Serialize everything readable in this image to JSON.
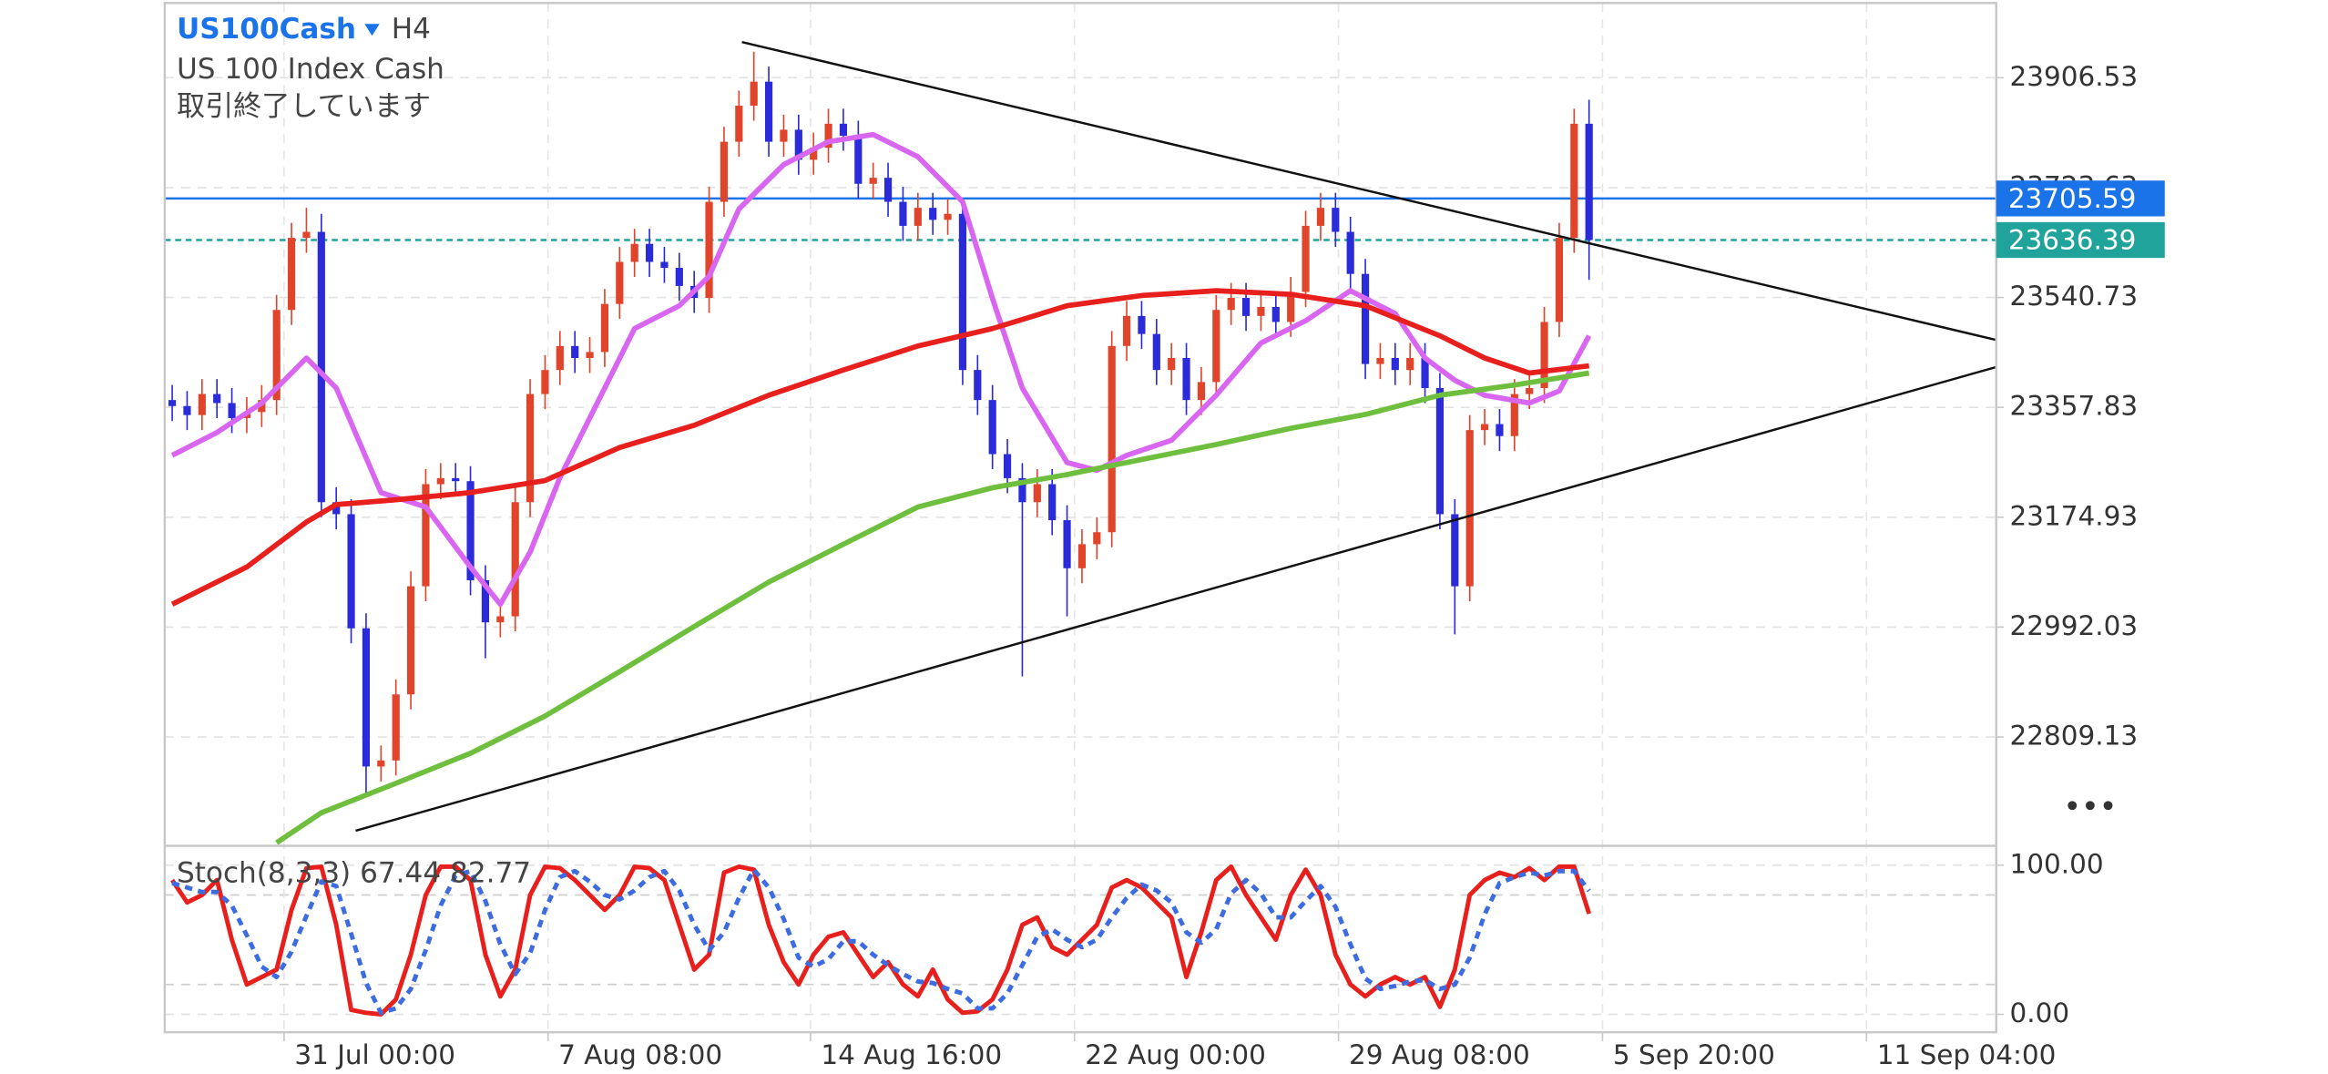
{
  "chart_data": [
    {
      "type": "candlestick",
      "title": "US100Cash",
      "timeframe": "H4",
      "subtitle": "US 100 Index Cash",
      "status": "取引終了しています",
      "xlim": [
        -0.5,
        122.3
      ],
      "ylim": [
        22628,
        24031
      ],
      "yticks": [
        23906.53,
        23723.63,
        23540.73,
        23357.83,
        23174.93,
        22992.03,
        22809.13
      ],
      "grid": true,
      "up_color": "#e0442b",
      "down_color": "#2b2bd9",
      "open": [
        23370,
        23360,
        23345,
        23380,
        23365,
        23340,
        23350,
        23370,
        23520,
        23640,
        23650,
        23200,
        23180,
        22990,
        22760,
        22770,
        22880,
        23060,
        23230,
        23240,
        23235,
        23070,
        23000,
        23010,
        23200,
        23380,
        23420,
        23460,
        23440,
        23450,
        23530,
        23600,
        23630,
        23600,
        23590,
        23560,
        23540,
        23700,
        23800,
        23860,
        23900,
        23800,
        23820,
        23770,
        23790,
        23830,
        23810,
        23730,
        23740,
        23700,
        23660,
        23690,
        23670,
        23680,
        23420,
        23370,
        23280,
        23240,
        23200,
        23230,
        23170,
        23090,
        23130,
        23150,
        23460,
        23510,
        23480,
        23420,
        23440,
        23370,
        23400,
        23520,
        23540,
        23510,
        23525,
        23500,
        23550,
        23660,
        23690,
        23650,
        23580,
        23430,
        23440,
        23420,
        23440,
        23390,
        23180,
        23060,
        23320,
        23330,
        23310,
        23380,
        23390,
        23500,
        23640,
        23830
      ],
      "high": [
        23395,
        23385,
        23405,
        23405,
        23390,
        23375,
        23395,
        23545,
        23665,
        23690,
        23680,
        23225,
        23205,
        23015,
        22795,
        22905,
        23085,
        23255,
        23265,
        23265,
        23260,
        23095,
        23035,
        23225,
        23405,
        23445,
        23485,
        23485,
        23475,
        23555,
        23625,
        23655,
        23655,
        23625,
        23615,
        23585,
        23725,
        23825,
        23885,
        23950,
        23925,
        23845,
        23845,
        23815,
        23855,
        23855,
        23835,
        23765,
        23765,
        23725,
        23715,
        23715,
        23705,
        23705,
        23445,
        23395,
        23305,
        23265,
        23255,
        23255,
        23195,
        23155,
        23175,
        23485,
        23535,
        23535,
        23505,
        23465,
        23465,
        23425,
        23545,
        23565,
        23565,
        23550,
        23550,
        23575,
        23685,
        23715,
        23715,
        23675,
        23605,
        23465,
        23465,
        23465,
        23465,
        23415,
        23205,
        23345,
        23355,
        23355,
        23405,
        23415,
        23525,
        23665,
        23855,
        23870
      ],
      "low": [
        23335,
        23320,
        23320,
        23340,
        23315,
        23315,
        23325,
        23345,
        23495,
        23615,
        23175,
        23155,
        22965,
        22710,
        22735,
        22745,
        22855,
        23035,
        23205,
        23210,
        23045,
        22940,
        22975,
        22985,
        23175,
        23355,
        23395,
        23415,
        23415,
        23425,
        23505,
        23575,
        23575,
        23565,
        23535,
        23515,
        23515,
        23675,
        23775,
        23835,
        23775,
        23775,
        23745,
        23745,
        23765,
        23785,
        23705,
        23705,
        23675,
        23635,
        23635,
        23645,
        23645,
        23395,
        23345,
        23255,
        23215,
        22910,
        23175,
        23145,
        23010,
        23065,
        23105,
        23125,
        23435,
        23455,
        23395,
        23395,
        23345,
        23345,
        23375,
        23495,
        23485,
        23485,
        23475,
        23475,
        23525,
        23635,
        23625,
        23555,
        23405,
        23405,
        23395,
        23395,
        23365,
        23155,
        22980,
        23035,
        23295,
        23285,
        23285,
        23355,
        23365,
        23475,
        23615,
        23570
      ],
      "close": [
        23360,
        23345,
        23380,
        23365,
        23340,
        23350,
        23370,
        23520,
        23640,
        23650,
        23200,
        23180,
        22990,
        22760,
        22770,
        22880,
        23060,
        23230,
        23240,
        23235,
        23070,
        23000,
        23010,
        23200,
        23380,
        23420,
        23460,
        23440,
        23450,
        23530,
        23600,
        23630,
        23600,
        23590,
        23560,
        23540,
        23700,
        23800,
        23860,
        23900,
        23800,
        23820,
        23770,
        23790,
        23830,
        23810,
        23730,
        23740,
        23700,
        23660,
        23690,
        23670,
        23680,
        23420,
        23370,
        23280,
        23240,
        23200,
        23230,
        23170,
        23090,
        23130,
        23150,
        23460,
        23510,
        23480,
        23420,
        23440,
        23370,
        23400,
        23520,
        23540,
        23510,
        23525,
        23500,
        23550,
        23660,
        23690,
        23650,
        23580,
        23430,
        23440,
        23420,
        23440,
        23390,
        23180,
        23060,
        23320,
        23330,
        23310,
        23380,
        23390,
        23500,
        23640,
        23830,
        23636.39
      ],
      "lines": [
        {
          "color": "#d966f0",
          "x": [
            0,
            3,
            6,
            9,
            11,
            14,
            17,
            20,
            22,
            24,
            26,
            29,
            31,
            34,
            36,
            38,
            41,
            44,
            47,
            50,
            53,
            55,
            57,
            60,
            62,
            64,
            67,
            70,
            73,
            76,
            79,
            82,
            84,
            86,
            88,
            91,
            93,
            95
          ],
          "values": [
            23278,
            23316,
            23365,
            23440,
            23390,
            23216,
            23192,
            23092,
            23030,
            23117,
            23241,
            23390,
            23489,
            23527,
            23576,
            23688,
            23762,
            23800,
            23812,
            23775,
            23700,
            23539,
            23390,
            23266,
            23253,
            23278,
            23303,
            23378,
            23465,
            23502,
            23552,
            23514,
            23440,
            23403,
            23378,
            23365,
            23385,
            23477
          ]
        },
        {
          "color": "#e8201d",
          "x": [
            0,
            5,
            9,
            11,
            15,
            20,
            25,
            30,
            35,
            40,
            45,
            50,
            55,
            60,
            65,
            70,
            75,
            80,
            85,
            88,
            91,
            95
          ],
          "values": [
            23030,
            23092,
            23167,
            23196,
            23204,
            23216,
            23236,
            23291,
            23328,
            23378,
            23420,
            23460,
            23489,
            23527,
            23544,
            23552,
            23546,
            23527,
            23477,
            23440,
            23415,
            23427
          ]
        },
        {
          "color": "#6fbf3f",
          "x": [
            7,
            10,
            15,
            20,
            25,
            30,
            35,
            40,
            45,
            50,
            55,
            60,
            65,
            70,
            75,
            80,
            85,
            90,
            95
          ],
          "values": [
            22633,
            22683,
            22732,
            22782,
            22844,
            22918,
            22993,
            23067,
            23130,
            23192,
            23224,
            23246,
            23271,
            23296,
            23323,
            23346,
            23378,
            23395,
            23415
          ]
        }
      ],
      "hlines": [
        {
          "value": 23705.59,
          "color": "#1a73e8",
          "dashed": false
        },
        {
          "value": 23636.39,
          "color": "#1fa39a",
          "dashed": true
        }
      ],
      "trendlines": [
        {
          "x": [
            38.2,
            122.3
          ],
          "y": [
            23966,
            23470
          ]
        },
        {
          "x": [
            12.3,
            122.3
          ],
          "y": [
            22653,
            23425
          ]
        }
      ]
    },
    {
      "type": "line",
      "title": "Stoch(8,3,3) 67.44 82.77",
      "xlim": [
        -0.5,
        122.3
      ],
      "ylim": [
        -12,
        113
      ],
      "yticks": [
        {
          "value": 100,
          "label": "100.00"
        },
        {
          "value": 0,
          "label": "0.00"
        }
      ],
      "levels": [
        20,
        80
      ],
      "xticks": [
        {
          "value": 7.5,
          "label": "31 Jul 00:00"
        },
        {
          "value": 25.2,
          "label": "7 Aug 08:00"
        },
        {
          "value": 42.8,
          "label": "14 Aug 16:00"
        },
        {
          "value": 60.5,
          "label": "22 Aug 00:00"
        },
        {
          "value": 78.2,
          "label": "29 Aug 08:00"
        },
        {
          "value": 95.9,
          "label": "5 Sep 20:00"
        },
        {
          "value": 113.6,
          "label": "11 Sep 04:00"
        }
      ],
      "series": [
        {
          "color": "#e8201d",
          "dashed": false,
          "values": [
            90,
            75,
            80,
            90,
            50,
            20,
            25,
            30,
            70,
            98,
            99,
            60,
            3,
            1,
            0,
            10,
            40,
            80,
            99,
            99,
            90,
            40,
            12,
            30,
            80,
            99,
            98,
            90,
            80,
            70,
            80,
            99,
            98,
            90,
            60,
            30,
            40,
            95,
            99,
            97,
            60,
            35,
            20,
            40,
            52,
            55,
            40,
            25,
            35,
            20,
            12,
            30,
            10,
            1,
            2,
            10,
            30,
            60,
            65,
            45,
            40,
            50,
            60,
            85,
            90,
            85,
            75,
            65,
            25,
            55,
            90,
            99,
            80,
            65,
            50,
            80,
            97,
            80,
            40,
            20,
            12,
            20,
            25,
            20,
            25,
            5,
            30,
            80,
            90,
            95,
            92,
            98,
            90,
            99,
            99,
            67.44
          ]
        },
        {
          "color": "#3d6be0",
          "dashed": true,
          "values": [
            88,
            85,
            82,
            82,
            73,
            53,
            32,
            25,
            42,
            66,
            89,
            86,
            54,
            21,
            1,
            4,
            17,
            43,
            73,
            93,
            96,
            76,
            47,
            27,
            41,
            70,
            92,
            96,
            89,
            80,
            77,
            83,
            92,
            96,
            83,
            60,
            43,
            55,
            78,
            97,
            85,
            64,
            38,
            32,
            37,
            49,
            49,
            40,
            33,
            27,
            22,
            21,
            17,
            14,
            4,
            4,
            14,
            33,
            52,
            57,
            50,
            45,
            50,
            65,
            78,
            87,
            83,
            75,
            55,
            48,
            57,
            81,
            90,
            81,
            65,
            65,
            76,
            86,
            72,
            47,
            24,
            17,
            19,
            22,
            23,
            17,
            20,
            38,
            67,
            88,
            92,
            95,
            93,
            96,
            96,
            82.77
          ]
        }
      ]
    }
  ]
}
